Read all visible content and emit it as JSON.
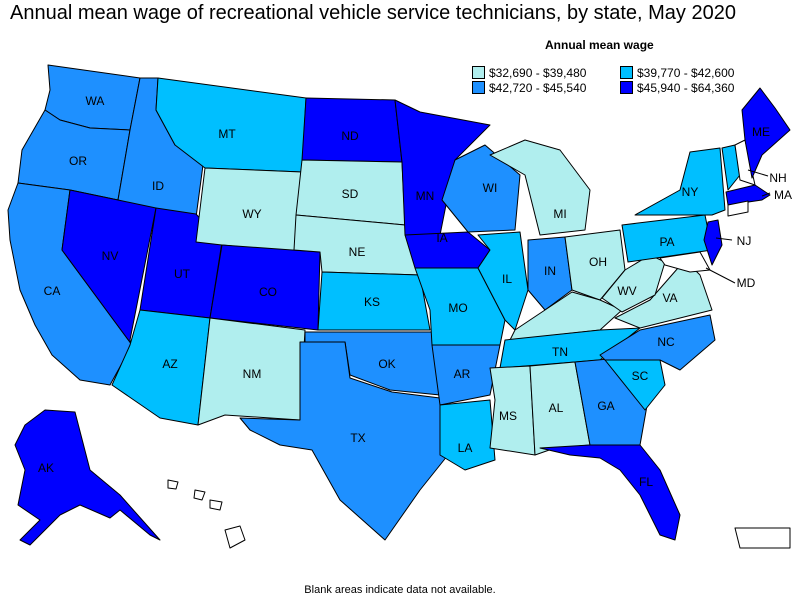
{
  "title": "Annual mean wage of recreational vehicle service technicians, by state, May 2020",
  "legend": {
    "title": "Annual mean wage",
    "items": [
      {
        "label": "$32,690 - $39,480",
        "color": "#b0eeee"
      },
      {
        "label": "$39,770 - $42,600",
        "color": "#00bfff"
      },
      {
        "label": "$42,720 - $45,540",
        "color": "#1e90ff"
      },
      {
        "label": "$45,940 - $64,360",
        "color": "#0000ff"
      }
    ]
  },
  "footnote": "Blank areas indicate data not available.",
  "states": {
    "WA": 2,
    "OR": 2,
    "CA": 2,
    "ID": 2,
    "NV": 3,
    "UT": 3,
    "AZ": 1,
    "MT": 1,
    "WY": 0,
    "CO": 3,
    "NM": 0,
    "ND": 3,
    "SD": 0,
    "NE": 0,
    "KS": 1,
    "OK": 2,
    "TX": 2,
    "MN": 3,
    "IA": 3,
    "MO": 1,
    "AR": 2,
    "LA": 1,
    "WI": 2,
    "IL": 1,
    "MI": 0,
    "IN": 2,
    "OH": 0,
    "KY": 0,
    "TN": 1,
    "MS": 0,
    "AL": 0,
    "GA": 2,
    "FL": 3,
    "SC": 1,
    "NC": 2,
    "VA": 0,
    "WV": 0,
    "PA": 1,
    "NY": 1,
    "VT": 1,
    "ME": 3,
    "MA": 3,
    "NJ": 3,
    "AK": 3
  },
  "callouts": [
    "NH",
    "MA",
    "NJ",
    "MD"
  ]
}
